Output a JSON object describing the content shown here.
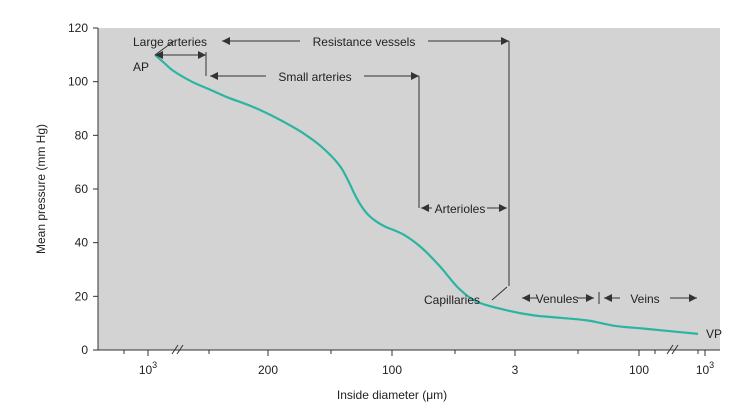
{
  "chart_data": {
    "type": "line",
    "title": "",
    "xlabel": "Inside diameter (μm)",
    "ylabel": "Mean pressure (mm Hg)",
    "ylim": [
      0,
      120
    ],
    "yticks": [
      0,
      20,
      40,
      60,
      80,
      100,
      120
    ],
    "xtick_labels": [
      {
        "label": "10",
        "sup": "3"
      },
      {
        "label": "200"
      },
      {
        "label": "100"
      },
      {
        "label": "3"
      },
      {
        "label": "100"
      },
      {
        "label": "10",
        "sup": "3"
      }
    ],
    "grid": false,
    "axis_breaks": true,
    "series": [
      {
        "color": "#2bb5a0",
        "points": [
          [
            0.0,
            110
          ],
          [
            0.05,
            107
          ],
          [
            0.1,
            104
          ],
          [
            0.2,
            100
          ],
          [
            0.3,
            97
          ],
          [
            0.4,
            94
          ],
          [
            0.5,
            91.5
          ],
          [
            0.6,
            88.5
          ],
          [
            0.7,
            85
          ],
          [
            0.8,
            81
          ],
          [
            0.9,
            76
          ],
          [
            1.0,
            69
          ],
          [
            1.05,
            63
          ],
          [
            1.1,
            56
          ],
          [
            1.15,
            51
          ],
          [
            1.2,
            48
          ],
          [
            1.25,
            46
          ],
          [
            1.35,
            43
          ],
          [
            1.45,
            38
          ],
          [
            1.55,
            31
          ],
          [
            1.65,
            23
          ],
          [
            1.75,
            18
          ],
          [
            1.9,
            15
          ],
          [
            2.05,
            13
          ],
          [
            2.2,
            12
          ],
          [
            2.35,
            11
          ],
          [
            2.5,
            9
          ],
          [
            2.65,
            8
          ],
          [
            2.8,
            7
          ],
          [
            2.95,
            6
          ]
        ]
      }
    ],
    "annotations": {
      "ap": "AP",
      "vp": "VP",
      "large_arteries": "Large arteries",
      "resistance_vessels": "Resistance vessels",
      "small_arteries": "Small arteries",
      "arterioles": "Arterioles",
      "capillaries": "Capillaries",
      "venules": "Venules",
      "veins": "Veins"
    }
  },
  "colors": {
    "plot_background": "#d3d3d3",
    "curve": "#2bb5a0",
    "axis": "#333333"
  }
}
